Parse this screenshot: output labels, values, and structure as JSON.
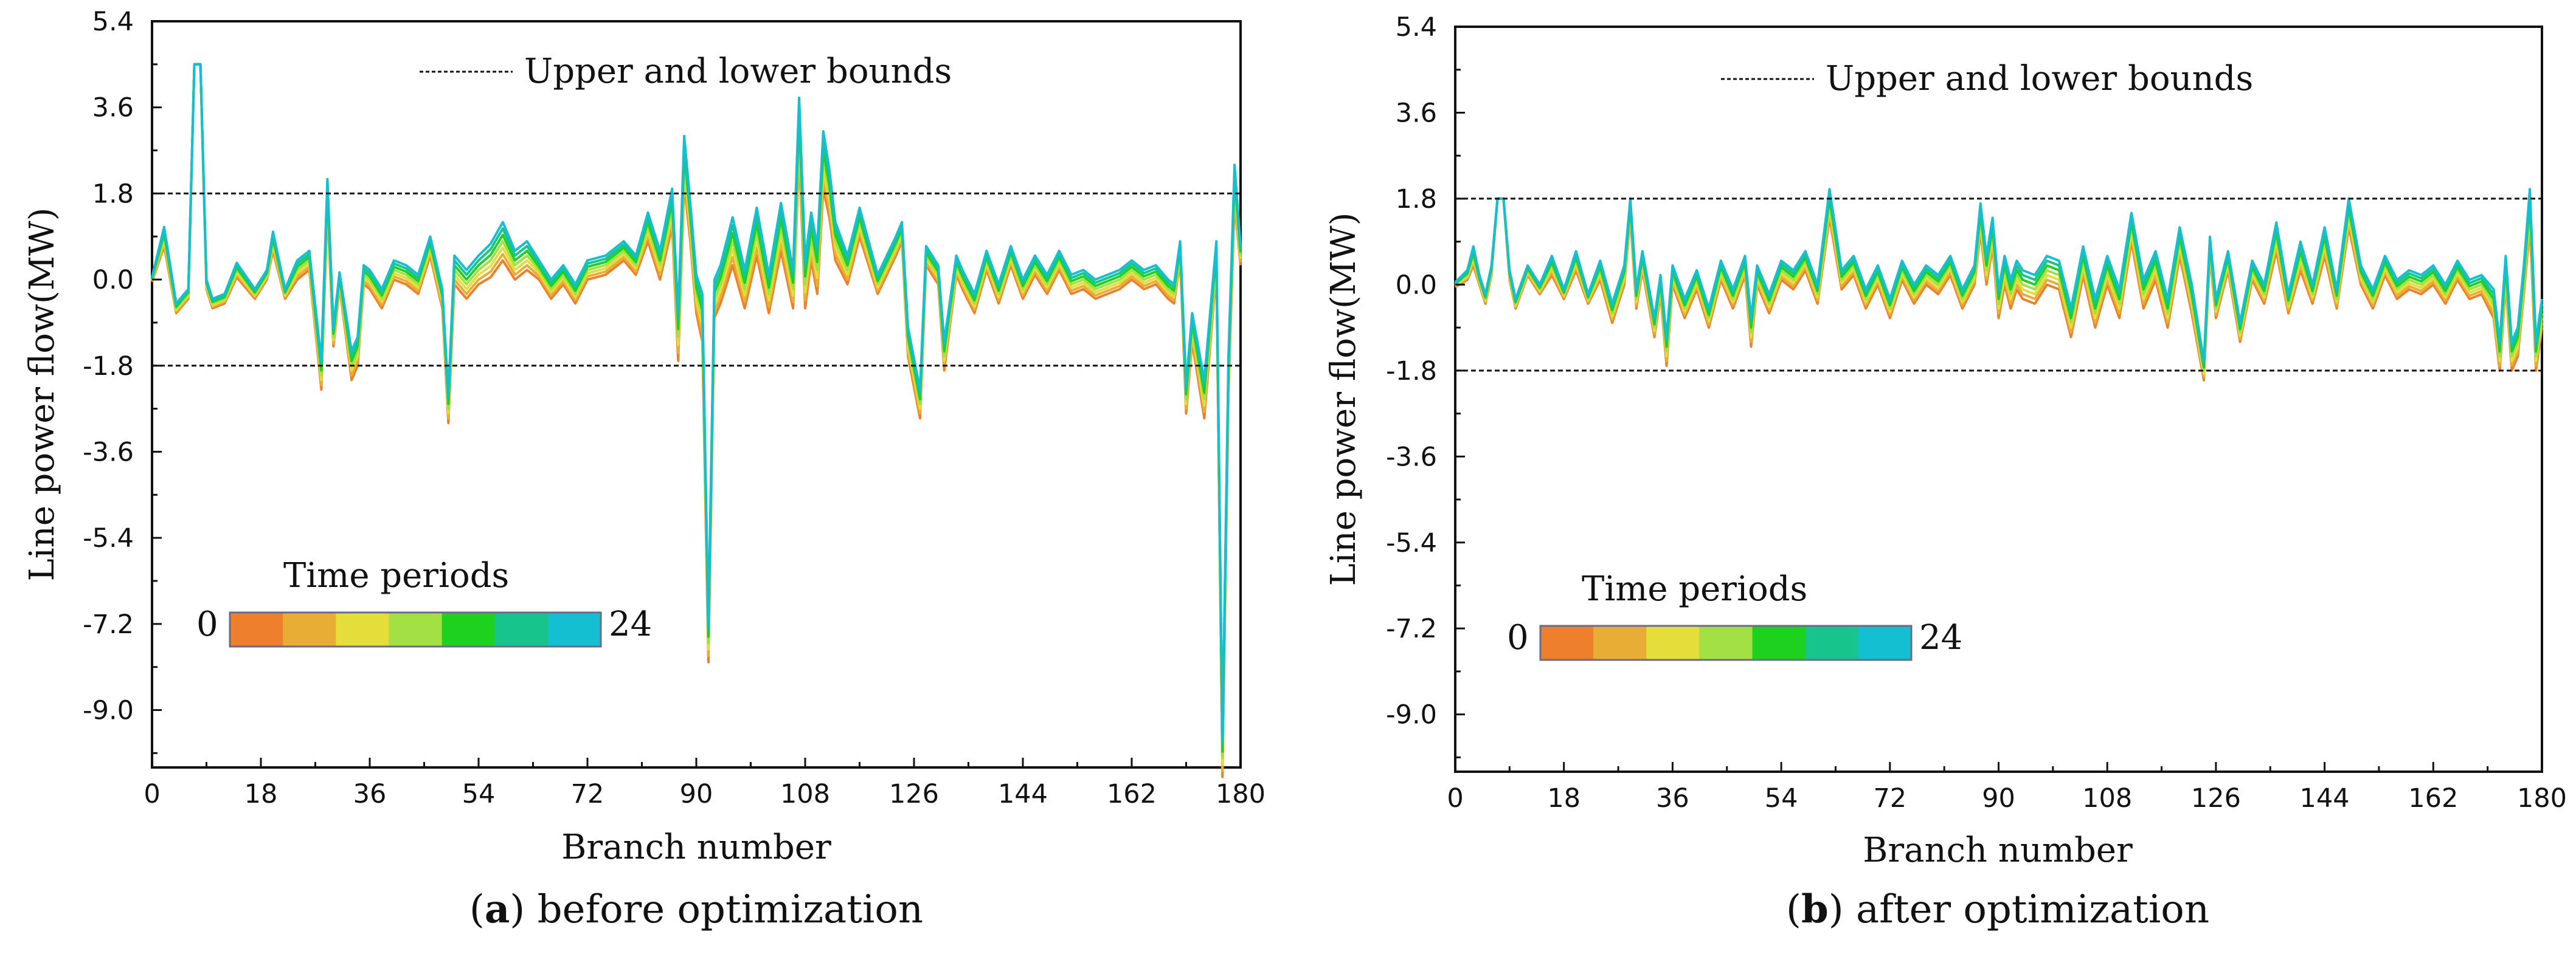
{
  "chart_data": [
    {
      "type": "line",
      "caption_letter": "a",
      "caption_text": "before optimization",
      "xlabel": "Branch number",
      "ylabel": "Line power flow(MW)",
      "xlim": [
        0,
        180
      ],
      "ylim": [
        -10.2,
        5.4
      ],
      "xticks": [
        "0",
        "18",
        "36",
        "54",
        "72",
        "90",
        "108",
        "126",
        "144",
        "162",
        "180"
      ],
      "yticks": [
        "5.4",
        "3.6",
        "1.8",
        "0.0",
        "-1.8",
        "-3.6",
        "-5.4",
        "-7.2",
        "-9.0"
      ],
      "bounds": [
        1.8,
        -1.8
      ],
      "bounds_label": "Upper and lower bounds",
      "colorbar_title": "Time periods",
      "colorbar_min": "0",
      "colorbar_max": "24",
      "colorbar_colors": [
        "#ee7f2d",
        "#e8ad35",
        "#e4dd3a",
        "#a2e043",
        "#1fd11f",
        "#17c48c",
        "#14bfd2"
      ],
      "series_template": {
        "x": [
          0,
          2,
          4,
          6,
          7,
          8,
          9,
          10,
          12,
          14,
          17,
          19,
          20,
          22,
          24,
          26,
          28,
          29,
          30,
          31,
          33,
          34,
          35,
          36,
          38,
          40,
          42,
          44,
          46,
          48,
          49,
          50,
          52,
          54,
          56,
          58,
          60,
          62,
          64,
          66,
          68,
          70,
          72,
          75,
          78,
          80,
          82,
          84,
          86,
          87,
          88,
          89,
          90,
          91,
          92,
          93,
          94,
          96,
          98,
          100,
          102,
          104,
          106,
          107,
          108,
          109,
          110,
          111,
          112,
          113,
          115,
          117,
          120,
          123,
          124,
          125,
          127,
          128,
          130,
          131,
          133,
          134,
          136,
          138,
          140,
          142,
          144,
          146,
          148,
          150,
          152,
          154,
          156,
          158,
          160,
          162,
          164,
          166,
          168,
          169,
          170,
          171,
          172,
          174,
          176,
          177,
          178,
          179,
          180
        ],
        "base": [
          0,
          0.9,
          -0.6,
          -0.3,
          4.5,
          4.5,
          -0.1,
          -0.5,
          -0.4,
          0.2,
          -0.3,
          0.1,
          0.8,
          -0.3,
          0.2,
          0.4,
          -2,
          1.8,
          -1.2,
          0,
          -1.8,
          -1.5,
          0.1,
          0.0,
          -0.4,
          0.2,
          0.1,
          -0.1,
          0.7,
          -0.4,
          -2.7,
          0.2,
          -0.1,
          0.2,
          0.4,
          0.8,
          0.3,
          0.5,
          0.2,
          -0.2,
          0.1,
          -0.3,
          0.2,
          0.3,
          0.6,
          0.3,
          1.1,
          0.3,
          1.5,
          -1.2,
          2.5,
          1.2,
          -0.3,
          -0.8,
          -7.6,
          -0.4,
          -0.1,
          0.8,
          -0.2,
          1.0,
          -0.3,
          1.1,
          -0.2,
          3.2,
          -0.1,
          0.9,
          0.2,
          2.5,
          1.8,
          0.8,
          0.2,
          1.2,
          -0.1,
          0.7,
          1.0,
          -1.3,
          -2.6,
          0.5,
          0.1,
          -1.6,
          0.3,
          0.0,
          -0.5,
          0.4,
          -0.3,
          0.5,
          -0.2,
          0.3,
          -0.1,
          0.4,
          -0.1,
          0.0,
          -0.2,
          -0.1,
          0.0,
          0.2,
          0.0,
          0.1,
          -0.2,
          -0.3,
          0.6,
          -2.5,
          -1.0,
          -2.5,
          0.5,
          -10.0,
          -2.0,
          2.0,
          0.5
        ],
        "spread": [
          0.05,
          0.2,
          0.1,
          0.1,
          0,
          0,
          0.1,
          0.1,
          0.1,
          0.15,
          0.1,
          0.1,
          0.2,
          0.1,
          0.2,
          0.2,
          0.3,
          0.3,
          0.2,
          0.15,
          0.3,
          0.3,
          0.2,
          0.2,
          0.2,
          0.2,
          0.2,
          0.2,
          0.2,
          0.2,
          0.3,
          0.3,
          0.3,
          0.3,
          0.35,
          0.4,
          0.3,
          0.3,
          0.2,
          0.2,
          0.2,
          0.2,
          0.2,
          0.2,
          0.2,
          0.2,
          0.3,
          0.3,
          0.4,
          0.5,
          0.5,
          0.4,
          0.4,
          0.5,
          0.4,
          0.4,
          0.4,
          0.5,
          0.4,
          0.5,
          0.4,
          0.5,
          0.4,
          0.6,
          0.5,
          0.5,
          0.5,
          0.6,
          0.5,
          0.4,
          0.3,
          0.3,
          0.2,
          0.2,
          0.2,
          0.3,
          0.3,
          0.2,
          0.2,
          0.3,
          0.2,
          0.2,
          0.2,
          0.2,
          0.2,
          0.2,
          0.2,
          0.2,
          0.2,
          0.2,
          0.2,
          0.2,
          0.2,
          0.2,
          0.2,
          0.2,
          0.2,
          0.2,
          0.2,
          0.2,
          0.2,
          0.3,
          0.3,
          0.4,
          0.3,
          0.4,
          0.4,
          0.4,
          0.2
        ]
      }
    },
    {
      "type": "line",
      "caption_letter": "b",
      "caption_text": "after optimization",
      "xlabel": "Branch number",
      "ylabel": "Line power flow(MW)",
      "xlim": [
        0,
        180
      ],
      "ylim": [
        -10.2,
        5.4
      ],
      "xticks": [
        "0",
        "18",
        "36",
        "54",
        "72",
        "90",
        "108",
        "126",
        "144",
        "162",
        "180"
      ],
      "yticks": [
        "5.4",
        "3.6",
        "1.8",
        "0.0",
        "-1.8",
        "-3.6",
        "-5.4",
        "-7.2",
        "-9.0"
      ],
      "bounds": [
        1.8,
        -1.8
      ],
      "bounds_label": "Upper and lower bounds",
      "colorbar_title": "Time periods",
      "colorbar_min": "0",
      "colorbar_max": "24",
      "colorbar_colors": [
        "#ee7f2d",
        "#e8ad35",
        "#e4dd3a",
        "#a2e043",
        "#1fd11f",
        "#17c48c",
        "#14bfd2"
      ],
      "series_template": {
        "x": [
          0,
          2,
          3,
          4,
          5,
          6,
          7,
          8,
          9,
          10,
          12,
          14,
          16,
          18,
          20,
          22,
          24,
          26,
          28,
          29,
          30,
          31,
          33,
          34,
          35,
          36,
          38,
          40,
          42,
          44,
          46,
          48,
          49,
          50,
          52,
          54,
          56,
          58,
          60,
          62,
          64,
          66,
          68,
          70,
          72,
          74,
          76,
          78,
          80,
          82,
          84,
          86,
          87,
          88,
          89,
          90,
          91,
          92,
          93,
          94,
          96,
          98,
          100,
          102,
          104,
          106,
          108,
          110,
          112,
          114,
          116,
          118,
          120,
          122,
          124,
          125,
          126,
          128,
          130,
          132,
          134,
          136,
          138,
          140,
          142,
          144,
          146,
          148,
          150,
          152,
          154,
          156,
          158,
          160,
          162,
          164,
          166,
          168,
          170,
          172,
          173,
          174,
          175,
          176,
          177,
          178,
          179,
          180
        ],
        "base": [
          0,
          0.2,
          0.6,
          0.1,
          -0.3,
          0.3,
          1.8,
          1.8,
          0.2,
          -0.4,
          0.3,
          -0.1,
          0.4,
          -0.2,
          0.5,
          -0.3,
          0.3,
          -0.6,
          0.2,
          1.6,
          -0.3,
          0.5,
          -0.9,
          0.0,
          -1.4,
          0.2,
          -0.5,
          0.1,
          -0.7,
          0.3,
          -0.3,
          0.4,
          -1.0,
          0.2,
          -0.4,
          0.3,
          0.1,
          0.5,
          -0.2,
          1.7,
          0.1,
          0.4,
          -0.3,
          0.2,
          -0.5,
          0.3,
          -0.2,
          0.2,
          0.0,
          0.4,
          -0.3,
          0.2,
          1.4,
          0.3,
          1.1,
          -0.4,
          0.3,
          -0.2,
          0.2,
          0.0,
          -0.1,
          0.3,
          0.2,
          -0.8,
          0.5,
          -0.6,
          0.3,
          -0.4,
          1.2,
          -0.2,
          0.4,
          -0.6,
          0.9,
          -0.3,
          -1.8,
          0.8,
          -0.5,
          0.5,
          -1.0,
          0.3,
          -0.2,
          1.0,
          -0.4,
          0.6,
          -0.2,
          0.9,
          -0.3,
          1.5,
          0.2,
          -0.3,
          0.4,
          -0.1,
          0.1,
          0.0,
          0.2,
          -0.2,
          0.3,
          -0.1,
          0.0,
          -0.4,
          -1.5,
          0.3,
          -1.5,
          -1.2,
          0.1,
          1.6,
          -1.5,
          -0.6
        ],
        "spread": [
          0.05,
          0.1,
          0.2,
          0.1,
          0.1,
          0.1,
          0,
          0,
          0.1,
          0.1,
          0.1,
          0.1,
          0.2,
          0.1,
          0.2,
          0.1,
          0.2,
          0.2,
          0.2,
          0.2,
          0.2,
          0.2,
          0.2,
          0.2,
          0.3,
          0.2,
          0.2,
          0.2,
          0.2,
          0.2,
          0.2,
          0.2,
          0.3,
          0.2,
          0.2,
          0.2,
          0.2,
          0.2,
          0.2,
          0.3,
          0.2,
          0.2,
          0.2,
          0.2,
          0.2,
          0.2,
          0.2,
          0.2,
          0.2,
          0.2,
          0.2,
          0.2,
          0.3,
          0.3,
          0.3,
          0.3,
          0.3,
          0.3,
          0.3,
          0.3,
          0.3,
          0.3,
          0.3,
          0.3,
          0.3,
          0.3,
          0.3,
          0.3,
          0.3,
          0.3,
          0.3,
          0.3,
          0.3,
          0.3,
          0.2,
          0.2,
          0.2,
          0.2,
          0.2,
          0.2,
          0.2,
          0.3,
          0.2,
          0.3,
          0.2,
          0.3,
          0.2,
          0.3,
          0.2,
          0.2,
          0.2,
          0.2,
          0.2,
          0.2,
          0.2,
          0.2,
          0.2,
          0.2,
          0.2,
          0.3,
          0.3,
          0.3,
          0.3,
          0.3,
          0.3,
          0.4,
          0.3,
          0.3
        ]
      }
    }
  ]
}
